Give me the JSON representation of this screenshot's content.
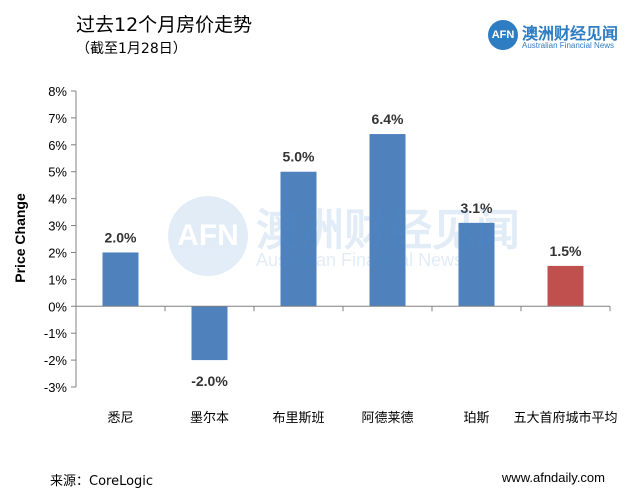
{
  "header": {
    "title": "过去12个月房价走势",
    "subtitle": "（截至1月28日）"
  },
  "logo": {
    "mark": "AFN",
    "name_cn": "澳洲财经见闻",
    "name_en": "Australian Financial News"
  },
  "watermark": {
    "mark": "AFN",
    "name_cn": "澳洲财经见闻",
    "name_en": "Australian Financial News"
  },
  "footer": {
    "source": "来源：CoreLogic",
    "site": "www.afndaily.com"
  },
  "chart_data": {
    "type": "bar",
    "title": "",
    "xlabel": "",
    "ylabel": "Price Change",
    "ylim": [
      -3,
      8
    ],
    "yticks": [
      -3,
      -2,
      -1,
      0,
      1,
      2,
      3,
      4,
      5,
      6,
      7,
      8
    ],
    "ytick_format": "{v}%",
    "grid": false,
    "categories": [
      "悉尼",
      "墨尔本",
      "布里斯班",
      "阿德莱德",
      "珀斯",
      "五大首府城市平均"
    ],
    "values": [
      2.0,
      -2.0,
      5.0,
      6.4,
      3.1,
      1.5
    ],
    "data_labels": [
      "2.0%",
      "-2.0%",
      "5.0%",
      "6.4%",
      "3.1%",
      "1.5%"
    ],
    "bar_colors": [
      "#4f81bd",
      "#4f81bd",
      "#4f81bd",
      "#4f81bd",
      "#4f81bd",
      "#c0504d"
    ]
  }
}
